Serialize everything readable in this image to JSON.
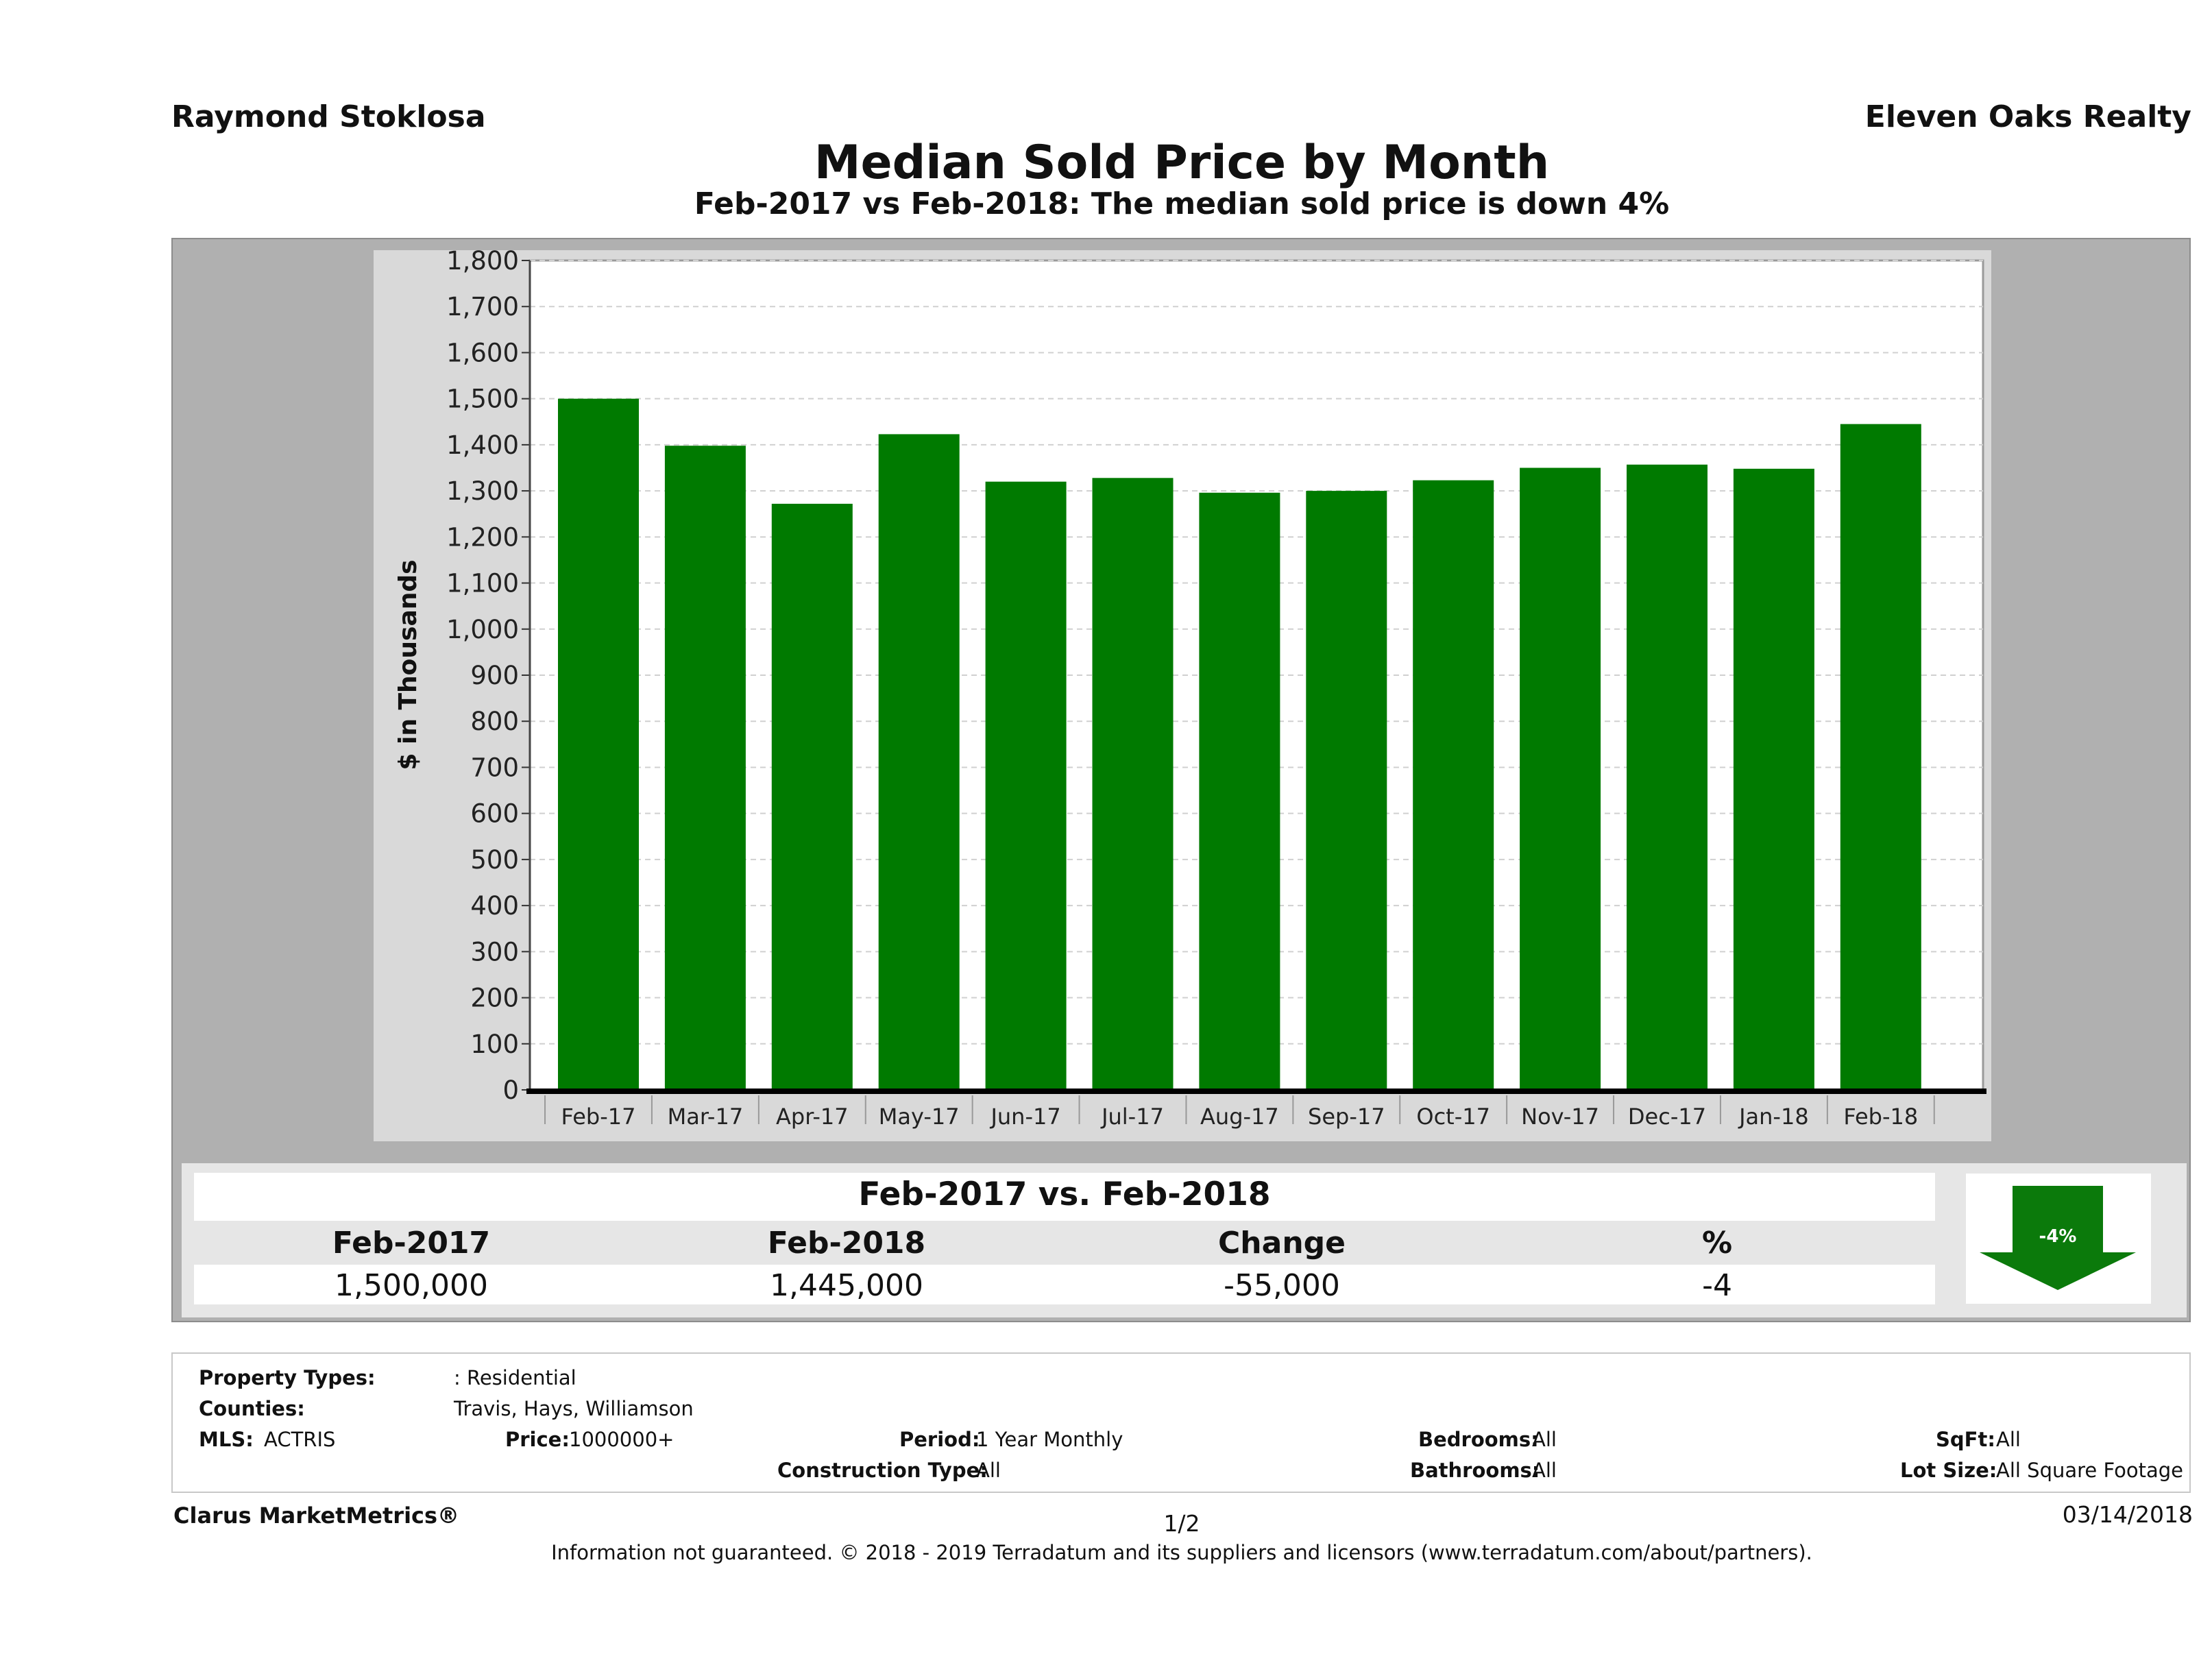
{
  "header": {
    "agent_name": "Raymond Stoklosa",
    "broker_name": "Eleven Oaks Realty",
    "title": "Median Sold Price by Month",
    "subtitle": "Feb-2017 vs Feb-2018: The median sold price is down 4%"
  },
  "colors": {
    "bar": "#007a00",
    "frame": "#b0b0b0",
    "panel": "#d9d9d9",
    "arrow": "#0b7a0b"
  },
  "chart_data": {
    "type": "bar",
    "title": "Median Sold Price by Month",
    "ylabel": "$ in Thousands",
    "xlabel": "",
    "ylim": [
      0,
      1800
    ],
    "ytick_step": 100,
    "grid": true,
    "categories": [
      "Feb-17",
      "Mar-17",
      "Apr-17",
      "May-17",
      "Jun-17",
      "Jul-17",
      "Aug-17",
      "Sep-17",
      "Oct-17",
      "Nov-17",
      "Dec-17",
      "Jan-18",
      "Feb-18"
    ],
    "values": [
      1500,
      1398,
      1272,
      1423,
      1320,
      1328,
      1296,
      1300,
      1323,
      1350,
      1357,
      1348,
      1445
    ]
  },
  "summary": {
    "heading": "Feb-2017 vs. Feb-2018",
    "columns": [
      "Feb-2017",
      "Feb-2018",
      "Change",
      "%"
    ],
    "values": [
      "1,500,000",
      "1,445,000",
      "-55,000",
      "-4"
    ],
    "arrow_label": "-4%"
  },
  "criteria": {
    "property_types_label": "Property Types:",
    "property_types_value": ": Residential",
    "counties_label": "Counties:",
    "counties_value": "Travis, Hays, Williamson",
    "mls_label": "MLS:",
    "mls_value": "ACTRIS",
    "price_label": "Price:",
    "price_value": "1000000+",
    "period_label": "Period:",
    "period_value": "1 Year Monthly",
    "construction_label": "Construction Type:",
    "construction_value": "All",
    "bedrooms_label": "Bedrooms:",
    "bedrooms_value": "All",
    "bathrooms_label": "Bathrooms:",
    "bathrooms_value": "All",
    "sqft_label": "SqFt:",
    "sqft_value": "All",
    "lot_size_label": "Lot Size:",
    "lot_size_value": "All Square Footage"
  },
  "footer": {
    "brand": "Clarus MarketMetrics®",
    "page": "1/2",
    "date": "03/14/2018",
    "disclaimer": "Information not guaranteed. © 2018 - 2019 Terradatum and its suppliers and licensors (www.terradatum.com/about/partners)."
  }
}
